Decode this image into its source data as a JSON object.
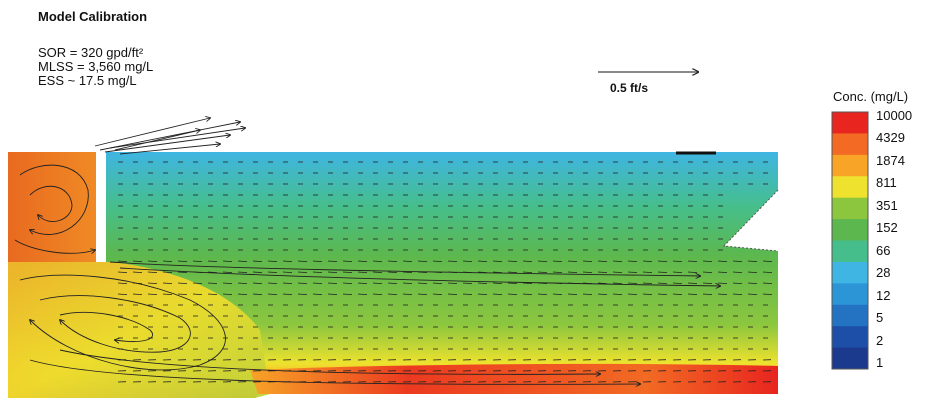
{
  "figure": {
    "title": "Model Calibration",
    "params": [
      "SOR = 320 gpd/ft²",
      "MLSS = 3,560 mg/L",
      "ESS ~ 17.5 mg/L"
    ],
    "velocity_scale_label": "0.5 ft/s"
  },
  "legend": {
    "title": "Conc. (mg/L)",
    "ticks": [
      "10000",
      "4329",
      "1874",
      "811",
      "351",
      "152",
      "66",
      "28",
      "12",
      "5",
      "2",
      "1"
    ],
    "colors": [
      "#e8251f",
      "#f26a23",
      "#f7a427",
      "#eee22e",
      "#8cc63f",
      "#5cb84e",
      "#46be8c",
      "#3fb5e3",
      "#2c95d6",
      "#2473c2",
      "#1e4fa8",
      "#1b3a8e"
    ]
  }
}
